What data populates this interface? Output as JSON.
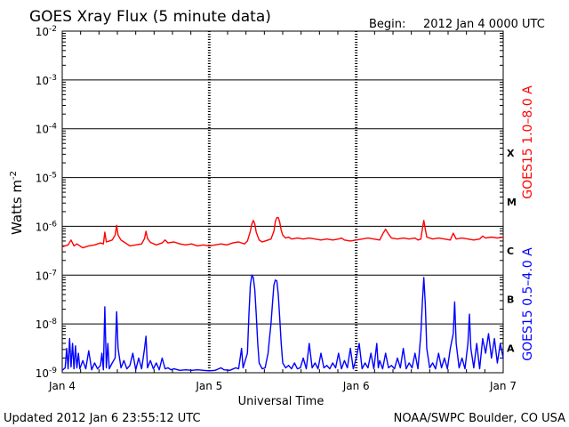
{
  "header": {
    "title": "GOES Xray Flux (5 minute data)",
    "begin_label": "Begin:",
    "begin_value": "2012 Jan 4 0000 UTC"
  },
  "footer": {
    "updated": "Updated 2012 Jan  6 23:55:12 UTC",
    "credit": "NOAA/SWPC Boulder, CO USA"
  },
  "chart_data": {
    "type": "line",
    "title": "GOES Xray Flux (5 minute data)",
    "xlabel": "Universal Time",
    "ylabel": "Watts m",
    "ylabel_superscript": "-2",
    "yscale": "log",
    "ylim_exponent": [
      -9,
      -2
    ],
    "y_ticks": [
      {
        "exp": -2,
        "base": "10",
        "sup": "-2"
      },
      {
        "exp": -3,
        "base": "10",
        "sup": "-3"
      },
      {
        "exp": -4,
        "base": "10",
        "sup": "-4"
      },
      {
        "exp": -5,
        "base": "10",
        "sup": "-5"
      },
      {
        "exp": -6,
        "base": "10",
        "sup": "-6"
      },
      {
        "exp": -7,
        "base": "10",
        "sup": "-7"
      },
      {
        "exp": -8,
        "base": "10",
        "sup": "-8"
      },
      {
        "exp": -9,
        "base": "10",
        "sup": "-9"
      }
    ],
    "x_ticks": [
      "Jan 4",
      "Jan 5",
      "Jan 6",
      "Jan 7"
    ],
    "xlim_days": [
      0,
      3
    ],
    "flare_classes": [
      {
        "label": "X",
        "exp": -4
      },
      {
        "label": "M",
        "exp": -5
      },
      {
        "label": "C",
        "exp": -6
      },
      {
        "label": "B",
        "exp": -7
      },
      {
        "label": "A",
        "exp": -8
      }
    ],
    "series": [
      {
        "name": "GOES15 1.0–8.0 A",
        "color": "#ff0000",
        "points": [
          [
            0.0,
            -6.42
          ],
          [
            0.04,
            -6.38
          ],
          [
            0.06,
            -6.28
          ],
          [
            0.08,
            -6.4
          ],
          [
            0.1,
            -6.36
          ],
          [
            0.14,
            -6.44
          ],
          [
            0.18,
            -6.4
          ],
          [
            0.22,
            -6.38
          ],
          [
            0.26,
            -6.34
          ],
          [
            0.28,
            -6.36
          ],
          [
            0.29,
            -6.12
          ],
          [
            0.3,
            -6.32
          ],
          [
            0.32,
            -6.3
          ],
          [
            0.34,
            -6.28
          ],
          [
            0.36,
            -6.18
          ],
          [
            0.37,
            -5.98
          ],
          [
            0.38,
            -6.18
          ],
          [
            0.4,
            -6.28
          ],
          [
            0.42,
            -6.32
          ],
          [
            0.44,
            -6.36
          ],
          [
            0.46,
            -6.4
          ],
          [
            0.5,
            -6.38
          ],
          [
            0.54,
            -6.36
          ],
          [
            0.56,
            -6.25
          ],
          [
            0.57,
            -6.1
          ],
          [
            0.58,
            -6.25
          ],
          [
            0.6,
            -6.33
          ],
          [
            0.64,
            -6.38
          ],
          [
            0.68,
            -6.34
          ],
          [
            0.7,
            -6.28
          ],
          [
            0.72,
            -6.34
          ],
          [
            0.76,
            -6.32
          ],
          [
            0.8,
            -6.36
          ],
          [
            0.84,
            -6.38
          ],
          [
            0.88,
            -6.36
          ],
          [
            0.92,
            -6.4
          ],
          [
            0.96,
            -6.38
          ],
          [
            1.0,
            -6.4
          ],
          [
            1.04,
            -6.38
          ],
          [
            1.08,
            -6.36
          ],
          [
            1.12,
            -6.38
          ],
          [
            1.16,
            -6.34
          ],
          [
            1.2,
            -6.32
          ],
          [
            1.24,
            -6.36
          ],
          [
            1.26,
            -6.3
          ],
          [
            1.28,
            -6.1
          ],
          [
            1.29,
            -5.95
          ],
          [
            1.3,
            -5.88
          ],
          [
            1.31,
            -5.95
          ],
          [
            1.32,
            -6.12
          ],
          [
            1.34,
            -6.28
          ],
          [
            1.36,
            -6.32
          ],
          [
            1.38,
            -6.3
          ],
          [
            1.4,
            -6.28
          ],
          [
            1.42,
            -6.26
          ],
          [
            1.44,
            -6.1
          ],
          [
            1.45,
            -5.9
          ],
          [
            1.46,
            -5.82
          ],
          [
            1.47,
            -5.82
          ],
          [
            1.48,
            -5.92
          ],
          [
            1.49,
            -6.08
          ],
          [
            1.5,
            -6.18
          ],
          [
            1.52,
            -6.24
          ],
          [
            1.54,
            -6.22
          ],
          [
            1.56,
            -6.26
          ],
          [
            1.6,
            -6.24
          ],
          [
            1.64,
            -6.26
          ],
          [
            1.68,
            -6.24
          ],
          [
            1.72,
            -6.26
          ],
          [
            1.76,
            -6.28
          ],
          [
            1.8,
            -6.26
          ],
          [
            1.84,
            -6.28
          ],
          [
            1.88,
            -6.26
          ],
          [
            1.9,
            -6.24
          ],
          [
            1.92,
            -6.28
          ],
          [
            1.96,
            -6.3
          ],
          [
            2.0,
            -6.28
          ],
          [
            2.04,
            -6.26
          ],
          [
            2.08,
            -6.24
          ],
          [
            2.12,
            -6.26
          ],
          [
            2.16,
            -6.28
          ],
          [
            2.18,
            -6.16
          ],
          [
            2.2,
            -6.06
          ],
          [
            2.22,
            -6.16
          ],
          [
            2.24,
            -6.24
          ],
          [
            2.28,
            -6.26
          ],
          [
            2.32,
            -6.24
          ],
          [
            2.36,
            -6.26
          ],
          [
            2.4,
            -6.24
          ],
          [
            2.42,
            -6.28
          ],
          [
            2.44,
            -6.26
          ],
          [
            2.45,
            -6.05
          ],
          [
            2.46,
            -5.88
          ],
          [
            2.47,
            -6.06
          ],
          [
            2.48,
            -6.22
          ],
          [
            2.52,
            -6.26
          ],
          [
            2.56,
            -6.24
          ],
          [
            2.6,
            -6.26
          ],
          [
            2.64,
            -6.28
          ],
          [
            2.66,
            -6.14
          ],
          [
            2.68,
            -6.26
          ],
          [
            2.72,
            -6.24
          ],
          [
            2.76,
            -6.26
          ],
          [
            2.8,
            -6.28
          ],
          [
            2.84,
            -6.26
          ],
          [
            2.86,
            -6.2
          ],
          [
            2.88,
            -6.24
          ],
          [
            2.92,
            -6.22
          ],
          [
            2.96,
            -6.24
          ],
          [
            3.0,
            -6.22
          ]
        ]
      },
      {
        "name": "GOES15 0.5–4.0 A",
        "color": "#0000ff",
        "points": [
          [
            0.0,
            -8.95
          ],
          [
            0.02,
            -8.9
          ],
          [
            0.03,
            -8.5
          ],
          [
            0.04,
            -8.92
          ],
          [
            0.05,
            -8.3
          ],
          [
            0.06,
            -8.88
          ],
          [
            0.07,
            -8.4
          ],
          [
            0.08,
            -8.92
          ],
          [
            0.09,
            -8.45
          ],
          [
            0.1,
            -8.9
          ],
          [
            0.11,
            -8.6
          ],
          [
            0.12,
            -8.92
          ],
          [
            0.14,
            -8.75
          ],
          [
            0.16,
            -8.92
          ],
          [
            0.18,
            -8.55
          ],
          [
            0.2,
            -8.94
          ],
          [
            0.22,
            -8.8
          ],
          [
            0.24,
            -8.92
          ],
          [
            0.26,
            -8.85
          ],
          [
            0.27,
            -8.6
          ],
          [
            0.28,
            -8.94
          ],
          [
            0.29,
            -7.65
          ],
          [
            0.3,
            -8.9
          ],
          [
            0.31,
            -8.4
          ],
          [
            0.32,
            -8.92
          ],
          [
            0.34,
            -8.8
          ],
          [
            0.36,
            -8.7
          ],
          [
            0.37,
            -7.75
          ],
          [
            0.38,
            -8.5
          ],
          [
            0.4,
            -8.9
          ],
          [
            0.42,
            -8.75
          ],
          [
            0.44,
            -8.92
          ],
          [
            0.46,
            -8.85
          ],
          [
            0.48,
            -8.6
          ],
          [
            0.5,
            -8.94
          ],
          [
            0.52,
            -8.7
          ],
          [
            0.54,
            -8.92
          ],
          [
            0.56,
            -8.5
          ],
          [
            0.57,
            -8.25
          ],
          [
            0.58,
            -8.9
          ],
          [
            0.6,
            -8.75
          ],
          [
            0.62,
            -8.92
          ],
          [
            0.64,
            -8.8
          ],
          [
            0.66,
            -8.94
          ],
          [
            0.68,
            -8.7
          ],
          [
            0.7,
            -8.92
          ],
          [
            0.72,
            -8.9
          ],
          [
            0.74,
            -8.94
          ],
          [
            0.76,
            -8.92
          ],
          [
            0.8,
            -8.95
          ],
          [
            0.84,
            -8.94
          ],
          [
            0.88,
            -8.95
          ],
          [
            0.92,
            -8.94
          ],
          [
            0.96,
            -8.95
          ],
          [
            1.0,
            -8.96
          ],
          [
            1.04,
            -8.95
          ],
          [
            1.08,
            -8.9
          ],
          [
            1.1,
            -8.94
          ],
          [
            1.14,
            -8.95
          ],
          [
            1.18,
            -8.9
          ],
          [
            1.2,
            -8.92
          ],
          [
            1.22,
            -8.5
          ],
          [
            1.23,
            -8.9
          ],
          [
            1.26,
            -8.6
          ],
          [
            1.27,
            -7.8
          ],
          [
            1.28,
            -7.2
          ],
          [
            1.29,
            -7.0
          ],
          [
            1.3,
            -7.05
          ],
          [
            1.31,
            -7.3
          ],
          [
            1.32,
            -7.8
          ],
          [
            1.33,
            -8.4
          ],
          [
            1.34,
            -8.8
          ],
          [
            1.36,
            -8.92
          ],
          [
            1.38,
            -8.9
          ],
          [
            1.4,
            -8.6
          ],
          [
            1.41,
            -8.3
          ],
          [
            1.42,
            -8.0
          ],
          [
            1.43,
            -7.6
          ],
          [
            1.44,
            -7.2
          ],
          [
            1.45,
            -7.1
          ],
          [
            1.46,
            -7.12
          ],
          [
            1.47,
            -7.4
          ],
          [
            1.48,
            -7.9
          ],
          [
            1.49,
            -8.4
          ],
          [
            1.5,
            -8.8
          ],
          [
            1.52,
            -8.9
          ],
          [
            1.54,
            -8.85
          ],
          [
            1.56,
            -8.92
          ],
          [
            1.58,
            -8.8
          ],
          [
            1.6,
            -8.92
          ],
          [
            1.62,
            -8.9
          ],
          [
            1.64,
            -8.7
          ],
          [
            1.66,
            -8.92
          ],
          [
            1.68,
            -8.4
          ],
          [
            1.7,
            -8.9
          ],
          [
            1.72,
            -8.8
          ],
          [
            1.74,
            -8.92
          ],
          [
            1.76,
            -8.6
          ],
          [
            1.78,
            -8.9
          ],
          [
            1.8,
            -8.85
          ],
          [
            1.82,
            -8.92
          ],
          [
            1.84,
            -8.8
          ],
          [
            1.86,
            -8.9
          ],
          [
            1.88,
            -8.6
          ],
          [
            1.9,
            -8.92
          ],
          [
            1.92,
            -8.75
          ],
          [
            1.94,
            -8.9
          ],
          [
            1.96,
            -8.5
          ],
          [
            1.98,
            -8.92
          ],
          [
            2.0,
            -8.7
          ],
          [
            2.02,
            -8.4
          ],
          [
            2.04,
            -8.92
          ],
          [
            2.06,
            -8.8
          ],
          [
            2.08,
            -8.9
          ],
          [
            2.1,
            -8.6
          ],
          [
            2.12,
            -8.92
          ],
          [
            2.14,
            -8.4
          ],
          [
            2.15,
            -8.9
          ],
          [
            2.16,
            -8.75
          ],
          [
            2.18,
            -8.92
          ],
          [
            2.2,
            -8.6
          ],
          [
            2.22,
            -8.9
          ],
          [
            2.24,
            -8.85
          ],
          [
            2.26,
            -8.92
          ],
          [
            2.28,
            -8.7
          ],
          [
            2.3,
            -8.9
          ],
          [
            2.32,
            -8.5
          ],
          [
            2.34,
            -8.92
          ],
          [
            2.36,
            -8.8
          ],
          [
            2.38,
            -8.9
          ],
          [
            2.4,
            -8.6
          ],
          [
            2.42,
            -8.92
          ],
          [
            2.44,
            -8.2
          ],
          [
            2.45,
            -7.55
          ],
          [
            2.46,
            -7.05
          ],
          [
            2.47,
            -7.6
          ],
          [
            2.48,
            -8.5
          ],
          [
            2.5,
            -8.9
          ],
          [
            2.52,
            -8.8
          ],
          [
            2.54,
            -8.92
          ],
          [
            2.56,
            -8.6
          ],
          [
            2.58,
            -8.9
          ],
          [
            2.6,
            -8.7
          ],
          [
            2.62,
            -8.92
          ],
          [
            2.64,
            -8.5
          ],
          [
            2.66,
            -8.2
          ],
          [
            2.67,
            -7.55
          ],
          [
            2.68,
            -8.4
          ],
          [
            2.7,
            -8.9
          ],
          [
            2.72,
            -8.7
          ],
          [
            2.74,
            -8.92
          ],
          [
            2.76,
            -8.4
          ],
          [
            2.77,
            -7.8
          ],
          [
            2.78,
            -8.5
          ],
          [
            2.8,
            -8.9
          ],
          [
            2.82,
            -8.4
          ],
          [
            2.84,
            -8.92
          ],
          [
            2.86,
            -8.3
          ],
          [
            2.88,
            -8.6
          ],
          [
            2.9,
            -8.2
          ],
          [
            2.92,
            -8.7
          ],
          [
            2.94,
            -8.3
          ],
          [
            2.96,
            -8.8
          ],
          [
            2.98,
            -8.4
          ],
          [
            3.0,
            -8.7
          ]
        ]
      }
    ]
  }
}
